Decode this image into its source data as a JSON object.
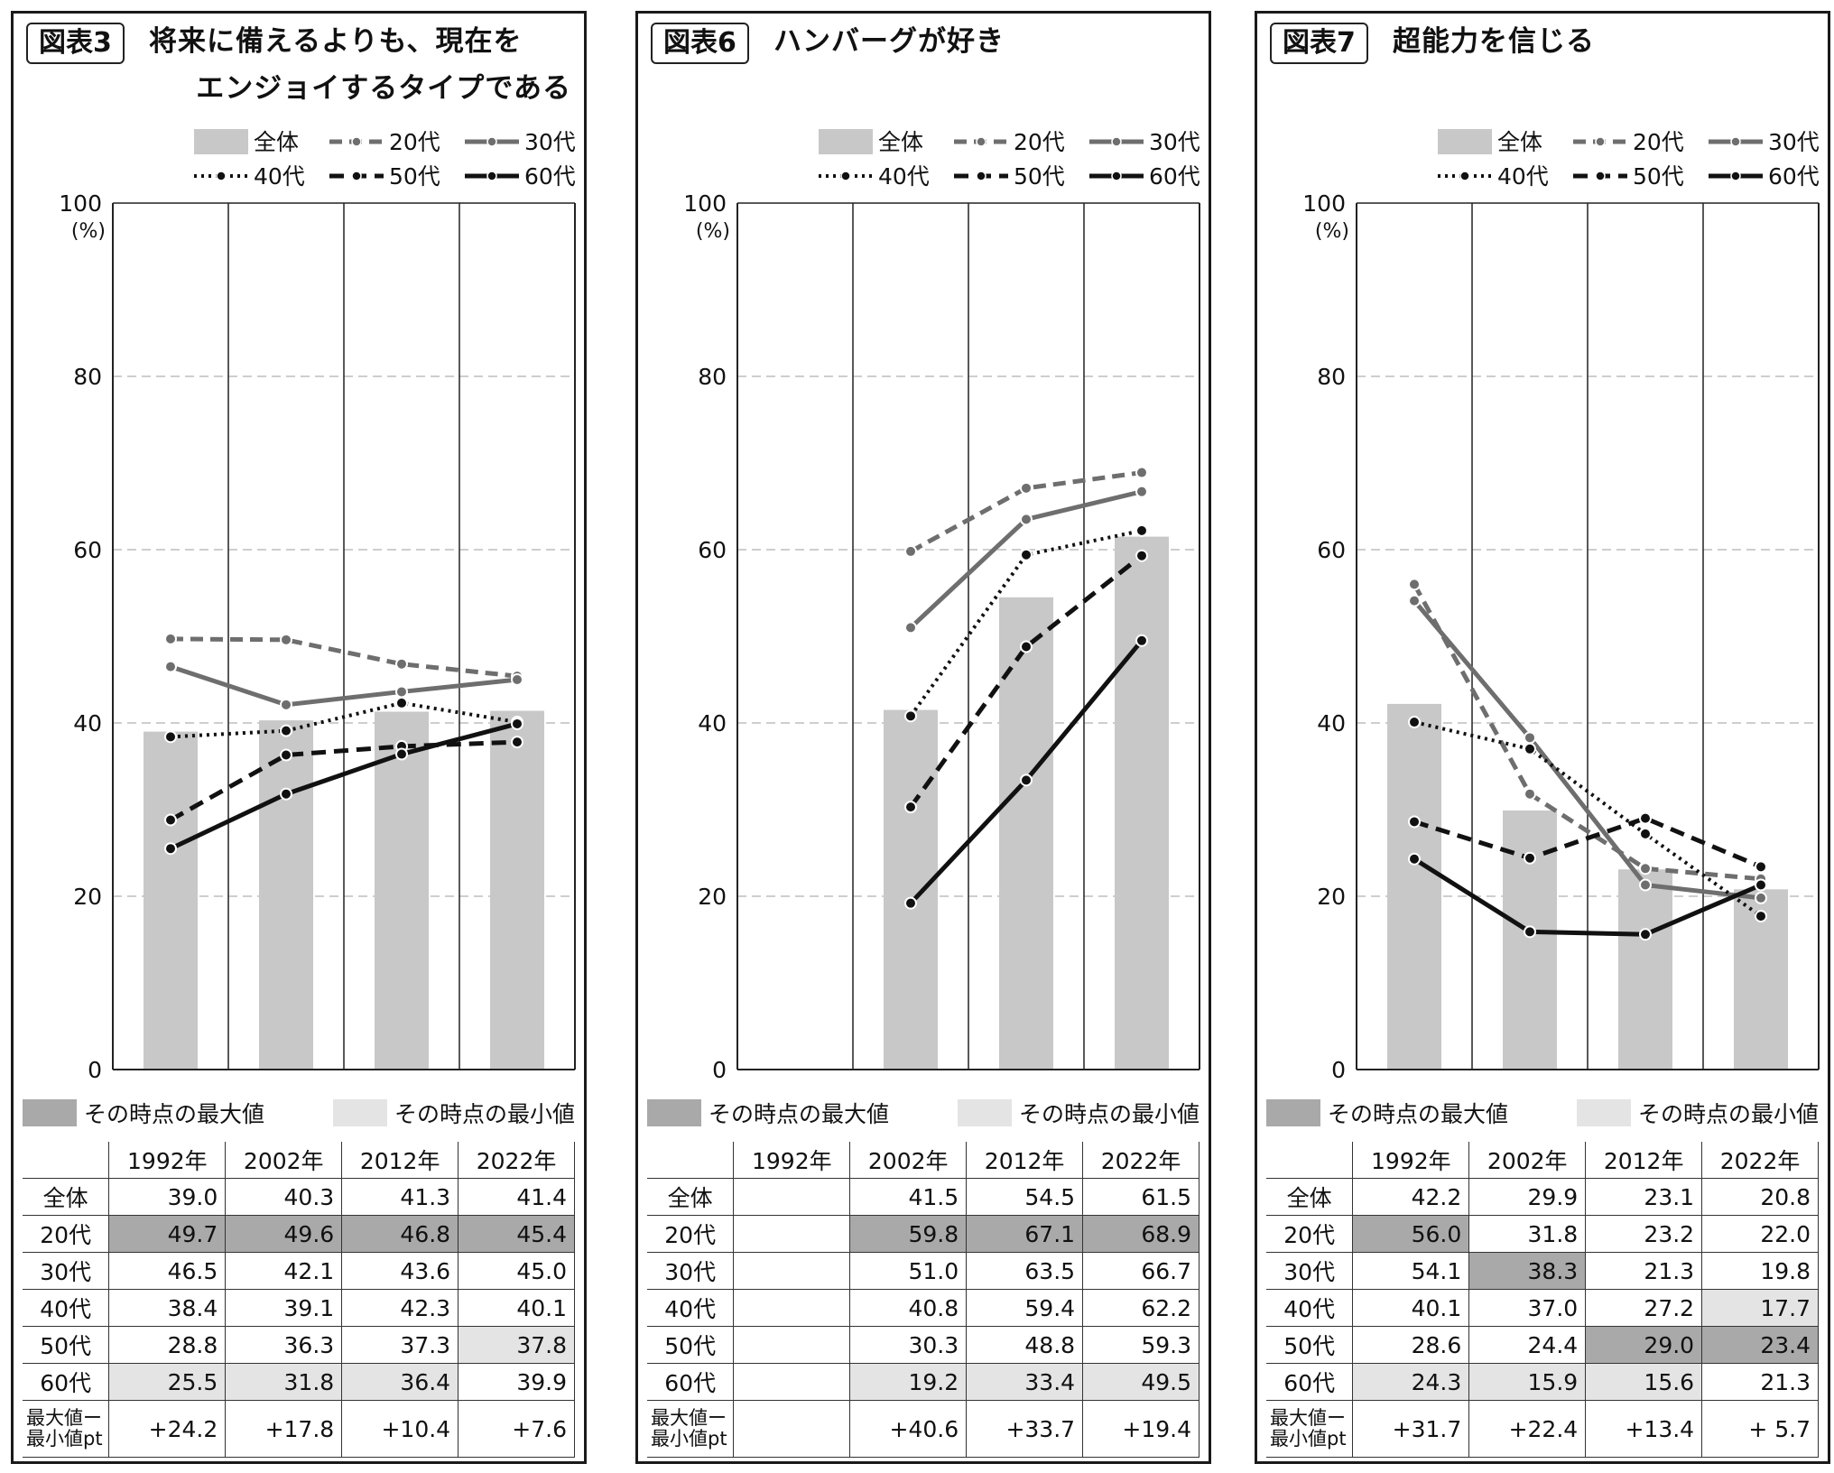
{
  "common": {
    "legend": [
      {
        "label": "全体",
        "style": "bar"
      },
      {
        "label": "20代",
        "style": "dash-grey"
      },
      {
        "label": "30代",
        "style": "solid-grey"
      },
      {
        "label": "40代",
        "style": "dotted-black"
      },
      {
        "label": "50代",
        "style": "dash-black"
      },
      {
        "label": "60代",
        "style": "solid-black"
      }
    ],
    "y_unit": "(%)",
    "max_legend": "その時点の最大値",
    "min_legend": "その時点の最小値",
    "diff_label_1": "最大値ー",
    "diff_label_2": "最小値pt",
    "colors": {
      "bar": "#c8c8c8",
      "grey_line": "#6e6e6e",
      "black_line": "#111111",
      "max_fill": "#a9a9a9",
      "min_fill": "#e4e4e4"
    }
  },
  "chart_data": [
    {
      "type": "bar+line",
      "label": "図表3",
      "title_line1": "将来に備えるよりも、現在を",
      "title_line2": "エンジョイするタイプである",
      "categories": [
        "1992年",
        "2002年",
        "2012年",
        "2022年"
      ],
      "ylim": [
        0,
        100
      ],
      "yticks": [
        0,
        20,
        40,
        60,
        80,
        100
      ],
      "series": [
        {
          "name": "全体",
          "values": [
            39.0,
            40.3,
            41.3,
            41.4
          ]
        },
        {
          "name": "20代",
          "values": [
            49.7,
            49.6,
            46.8,
            45.4
          ]
        },
        {
          "name": "30代",
          "values": [
            46.5,
            42.1,
            43.6,
            45.0
          ]
        },
        {
          "name": "40代",
          "values": [
            38.4,
            39.1,
            42.3,
            40.1
          ]
        },
        {
          "name": "50代",
          "values": [
            28.8,
            36.3,
            37.3,
            37.8
          ]
        },
        {
          "name": "60代",
          "values": [
            25.5,
            31.8,
            36.4,
            39.9
          ]
        }
      ],
      "table": {
        "rows": [
          {
            "label": "全体",
            "cells": [
              "39.0",
              "40.3",
              "41.3",
              "41.4"
            ],
            "shade": [
              "",
              "",
              "",
              ""
            ]
          },
          {
            "label": "20代",
            "cells": [
              "49.7",
              "49.6",
              "46.8",
              "45.4"
            ],
            "shade": [
              "max",
              "max",
              "max",
              "max"
            ]
          },
          {
            "label": "30代",
            "cells": [
              "46.5",
              "42.1",
              "43.6",
              "45.0"
            ],
            "shade": [
              "",
              "",
              "",
              ""
            ]
          },
          {
            "label": "40代",
            "cells": [
              "38.4",
              "39.1",
              "42.3",
              "40.1"
            ],
            "shade": [
              "",
              "",
              "",
              ""
            ]
          },
          {
            "label": "50代",
            "cells": [
              "28.8",
              "36.3",
              "37.3",
              "37.8"
            ],
            "shade": [
              "",
              "",
              "",
              "min"
            ]
          },
          {
            "label": "60代",
            "cells": [
              "25.5",
              "31.8",
              "36.4",
              "39.9"
            ],
            "shade": [
              "min",
              "min",
              "min",
              ""
            ]
          }
        ],
        "diff": [
          "+24.2",
          "+17.8",
          "+10.4",
          "+7.6"
        ]
      }
    },
    {
      "type": "bar+line",
      "label": "図表6",
      "title_line1": "ハンバーグが好き",
      "title_line2": "",
      "categories": [
        "1992年",
        "2002年",
        "2012年",
        "2022年"
      ],
      "ylim": [
        0,
        100
      ],
      "yticks": [
        0,
        20,
        40,
        60,
        80,
        100
      ],
      "series": [
        {
          "name": "全体",
          "values": [
            null,
            41.5,
            54.5,
            61.5
          ]
        },
        {
          "name": "20代",
          "values": [
            null,
            59.8,
            67.1,
            68.9
          ]
        },
        {
          "name": "30代",
          "values": [
            null,
            51.0,
            63.5,
            66.7
          ]
        },
        {
          "name": "40代",
          "values": [
            null,
            40.8,
            59.4,
            62.2
          ]
        },
        {
          "name": "50代",
          "values": [
            null,
            30.3,
            48.8,
            59.3
          ]
        },
        {
          "name": "60代",
          "values": [
            null,
            19.2,
            33.4,
            49.5
          ]
        }
      ],
      "table": {
        "rows": [
          {
            "label": "全体",
            "cells": [
              "",
              "41.5",
              "54.5",
              "61.5"
            ],
            "shade": [
              "",
              "",
              "",
              ""
            ]
          },
          {
            "label": "20代",
            "cells": [
              "",
              "59.8",
              "67.1",
              "68.9"
            ],
            "shade": [
              "",
              "max",
              "max",
              "max"
            ]
          },
          {
            "label": "30代",
            "cells": [
              "",
              "51.0",
              "63.5",
              "66.7"
            ],
            "shade": [
              "",
              "",
              "",
              ""
            ]
          },
          {
            "label": "40代",
            "cells": [
              "",
              "40.8",
              "59.4",
              "62.2"
            ],
            "shade": [
              "",
              "",
              "",
              ""
            ]
          },
          {
            "label": "50代",
            "cells": [
              "",
              "30.3",
              "48.8",
              "59.3"
            ],
            "shade": [
              "",
              "",
              "",
              ""
            ]
          },
          {
            "label": "60代",
            "cells": [
              "",
              "19.2",
              "33.4",
              "49.5"
            ],
            "shade": [
              "",
              "min",
              "min",
              "min"
            ]
          }
        ],
        "diff": [
          "",
          "+40.6",
          "+33.7",
          "+19.4"
        ]
      }
    },
    {
      "type": "bar+line",
      "label": "図表7",
      "title_line1": "超能力を信じる",
      "title_line2": "",
      "categories": [
        "1992年",
        "2002年",
        "2012年",
        "2022年"
      ],
      "ylim": [
        0,
        100
      ],
      "yticks": [
        0,
        20,
        40,
        60,
        80,
        100
      ],
      "series": [
        {
          "name": "全体",
          "values": [
            42.2,
            29.9,
            23.1,
            20.8
          ]
        },
        {
          "name": "20代",
          "values": [
            56.0,
            31.8,
            23.2,
            22.0
          ]
        },
        {
          "name": "30代",
          "values": [
            54.1,
            38.3,
            21.3,
            19.8
          ]
        },
        {
          "name": "40代",
          "values": [
            40.1,
            37.0,
            27.2,
            17.7
          ]
        },
        {
          "name": "50代",
          "values": [
            28.6,
            24.4,
            29.0,
            23.4
          ]
        },
        {
          "name": "60代",
          "values": [
            24.3,
            15.9,
            15.6,
            21.3
          ]
        }
      ],
      "table": {
        "rows": [
          {
            "label": "全体",
            "cells": [
              "42.2",
              "29.9",
              "23.1",
              "20.8"
            ],
            "shade": [
              "",
              "",
              "",
              ""
            ]
          },
          {
            "label": "20代",
            "cells": [
              "56.0",
              "31.8",
              "23.2",
              "22.0"
            ],
            "shade": [
              "max",
              "",
              "",
              ""
            ]
          },
          {
            "label": "30代",
            "cells": [
              "54.1",
              "38.3",
              "21.3",
              "19.8"
            ],
            "shade": [
              "",
              "max",
              "",
              ""
            ]
          },
          {
            "label": "40代",
            "cells": [
              "40.1",
              "37.0",
              "27.2",
              "17.7"
            ],
            "shade": [
              "",
              "",
              "",
              "min"
            ]
          },
          {
            "label": "50代",
            "cells": [
              "28.6",
              "24.4",
              "29.0",
              "23.4"
            ],
            "shade": [
              "",
              "",
              "max",
              "max"
            ]
          },
          {
            "label": "60代",
            "cells": [
              "24.3",
              "15.9",
              "15.6",
              "21.3"
            ],
            "shade": [
              "min",
              "min",
              "min",
              ""
            ]
          }
        ],
        "diff": [
          "+31.7",
          "+22.4",
          "+13.4",
          "+ 5.7"
        ]
      }
    }
  ]
}
